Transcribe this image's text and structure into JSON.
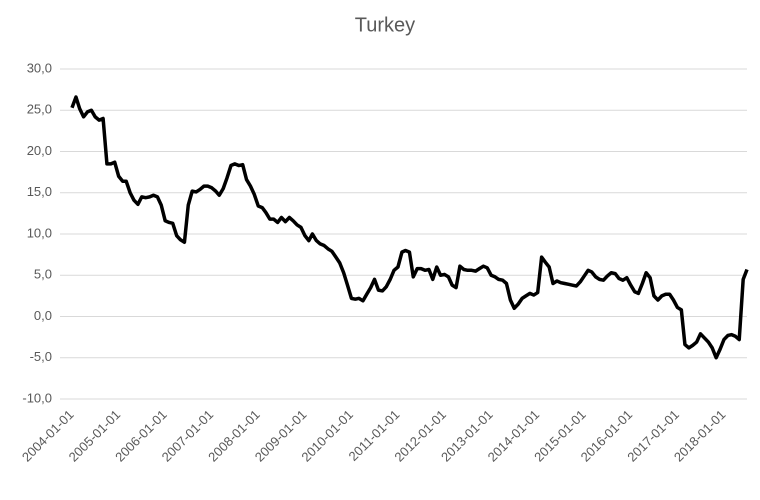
{
  "chart_data": {
    "type": "line",
    "title": "Turkey",
    "color": "#000000",
    "grid": true,
    "x": [
      "2004-01-01",
      "2004-02-01",
      "2004-03-01",
      "2004-04-01",
      "2004-05-01",
      "2004-06-01",
      "2004-07-01",
      "2004-08-01",
      "2004-09-01",
      "2004-10-01",
      "2004-11-01",
      "2004-12-01",
      "2005-01-01",
      "2005-02-01",
      "2005-03-01",
      "2005-04-01",
      "2005-05-01",
      "2005-06-01",
      "2005-07-01",
      "2005-08-01",
      "2005-09-01",
      "2005-10-01",
      "2005-11-01",
      "2005-12-01",
      "2006-01-01",
      "2006-02-01",
      "2006-03-01",
      "2006-04-01",
      "2006-05-01",
      "2006-06-01",
      "2006-07-01",
      "2006-08-01",
      "2006-09-01",
      "2006-10-01",
      "2006-11-01",
      "2006-12-01",
      "2007-01-01",
      "2007-02-01",
      "2007-03-01",
      "2007-04-01",
      "2007-05-01",
      "2007-06-01",
      "2007-07-01",
      "2007-08-01",
      "2007-09-01",
      "2007-10-01",
      "2007-11-01",
      "2007-12-01",
      "2008-01-01",
      "2008-02-01",
      "2008-03-01",
      "2008-04-01",
      "2008-05-01",
      "2008-06-01",
      "2008-07-01",
      "2008-08-01",
      "2008-09-01",
      "2008-10-01",
      "2008-11-01",
      "2008-12-01",
      "2009-01-01",
      "2009-02-01",
      "2009-03-01",
      "2009-04-01",
      "2009-05-01",
      "2009-06-01",
      "2009-07-01",
      "2009-08-01",
      "2009-09-01",
      "2009-10-01",
      "2009-11-01",
      "2009-12-01",
      "2010-01-01",
      "2010-02-01",
      "2010-03-01",
      "2010-04-01",
      "2010-05-01",
      "2010-06-01",
      "2010-07-01",
      "2010-08-01",
      "2010-09-01",
      "2010-10-01",
      "2010-11-01",
      "2010-12-01",
      "2011-01-01",
      "2011-02-01",
      "2011-03-01",
      "2011-04-01",
      "2011-05-01",
      "2011-06-01",
      "2011-07-01",
      "2011-08-01",
      "2011-09-01",
      "2011-10-01",
      "2011-11-01",
      "2011-12-01",
      "2012-01-01",
      "2012-02-01",
      "2012-03-01",
      "2012-04-01",
      "2012-05-01",
      "2012-06-01",
      "2012-07-01",
      "2012-08-01",
      "2012-09-01",
      "2012-10-01",
      "2012-11-01",
      "2012-12-01",
      "2013-01-01",
      "2013-02-01",
      "2013-03-01",
      "2013-04-01",
      "2013-05-01",
      "2013-06-01",
      "2013-07-01",
      "2013-08-01",
      "2013-09-01",
      "2013-10-01",
      "2013-11-01",
      "2013-12-01",
      "2014-01-01",
      "2014-02-01",
      "2014-03-01",
      "2014-04-01",
      "2014-05-01",
      "2014-06-01",
      "2014-07-01",
      "2014-08-01",
      "2014-09-01",
      "2014-10-01",
      "2014-11-01",
      "2014-12-01",
      "2015-01-01",
      "2015-02-01",
      "2015-03-01",
      "2015-04-01",
      "2015-05-01",
      "2015-06-01",
      "2015-07-01",
      "2015-08-01",
      "2015-09-01",
      "2015-10-01",
      "2015-11-01",
      "2015-12-01",
      "2016-01-01",
      "2016-02-01",
      "2016-03-01",
      "2016-04-01",
      "2016-05-01",
      "2016-06-01",
      "2016-07-01",
      "2016-08-01",
      "2016-09-01",
      "2016-10-01",
      "2016-11-01",
      "2016-12-01",
      "2017-01-01",
      "2017-02-01",
      "2017-03-01",
      "2017-04-01",
      "2017-05-01",
      "2017-06-01",
      "2017-07-01",
      "2017-08-01",
      "2017-09-01",
      "2017-10-01",
      "2017-11-01",
      "2017-12-01",
      "2018-01-01",
      "2018-02-01",
      "2018-03-01",
      "2018-04-01",
      "2018-05-01",
      "2018-06-01",
      "2018-07-01"
    ],
    "values": [
      25.3,
      26.6,
      25.2,
      24.2,
      24.8,
      25.0,
      24.2,
      23.8,
      24.0,
      18.5,
      18.5,
      18.7,
      17.0,
      16.4,
      16.4,
      15.0,
      14.1,
      13.6,
      14.5,
      14.4,
      14.5,
      14.7,
      14.5,
      13.5,
      11.6,
      11.4,
      11.3,
      9.8,
      9.3,
      9.0,
      13.5,
      15.2,
      15.1,
      15.4,
      15.8,
      15.8,
      15.6,
      15.2,
      14.7,
      15.5,
      16.8,
      18.3,
      18.5,
      18.3,
      18.4,
      16.6,
      15.8,
      14.8,
      13.4,
      13.2,
      12.6,
      11.8,
      11.8,
      11.4,
      12.0,
      11.5,
      12.0,
      11.6,
      11.1,
      10.8,
      9.8,
      9.2,
      10.0,
      9.2,
      8.8,
      8.6,
      8.2,
      7.9,
      7.2,
      6.5,
      5.3,
      3.8,
      2.2,
      2.1,
      2.2,
      1.9,
      2.7,
      3.5,
      4.5,
      3.2,
      3.1,
      3.6,
      4.5,
      5.6,
      6.0,
      7.8,
      8.0,
      7.8,
      4.8,
      5.8,
      5.8,
      5.6,
      5.7,
      4.5,
      6.0,
      5.0,
      5.1,
      4.8,
      3.8,
      3.5,
      6.1,
      5.7,
      5.6,
      5.6,
      5.5,
      5.8,
      6.1,
      5.9,
      5.0,
      4.8,
      4.5,
      4.4,
      4.0,
      2.0,
      1.0,
      1.5,
      2.2,
      2.5,
      2.8,
      2.6,
      2.9,
      7.2,
      6.6,
      6.0,
      4.0,
      4.3,
      4.1,
      4.0,
      3.9,
      3.8,
      3.7,
      4.2,
      4.9,
      5.6,
      5.4,
      4.8,
      4.5,
      4.4,
      4.9,
      5.3,
      5.2,
      4.6,
      4.4,
      4.7,
      3.8,
      3.0,
      2.8,
      4.0,
      5.3,
      4.7,
      2.5,
      2.0,
      2.5,
      2.7,
      2.7,
      2.0,
      1.1,
      0.8,
      -3.4,
      -3.8,
      -3.5,
      -3.1,
      -2.1,
      -2.6,
      -3.1,
      -3.8,
      -5.0,
      -4.0,
      -2.8,
      -2.3,
      -2.2,
      -2.4,
      -2.8,
      4.5,
      5.7
    ],
    "xlim": [
      "2004-01-01",
      "2018-07-01"
    ],
    "xticks": [
      "2004-01-01",
      "2005-01-01",
      "2006-01-01",
      "2007-01-01",
      "2008-01-01",
      "2009-01-01",
      "2010-01-01",
      "2011-01-01",
      "2012-01-01",
      "2013-01-01",
      "2014-01-01",
      "2015-01-01",
      "2016-01-01",
      "2017-01-01",
      "2018-01-01"
    ],
    "ylim": [
      -10,
      30
    ],
    "yticks": [
      {
        "value": -10,
        "label": "-10,0"
      },
      {
        "value": -5,
        "label": "-5,0"
      },
      {
        "value": 0,
        "label": "0,0"
      },
      {
        "value": 5,
        "label": "5,0"
      },
      {
        "value": 10,
        "label": "10,0"
      },
      {
        "value": 15,
        "label": "15,0"
      },
      {
        "value": 20,
        "label": "20,0"
      },
      {
        "value": 25,
        "label": "25,0"
      },
      {
        "value": 30,
        "label": "30,0"
      }
    ]
  }
}
